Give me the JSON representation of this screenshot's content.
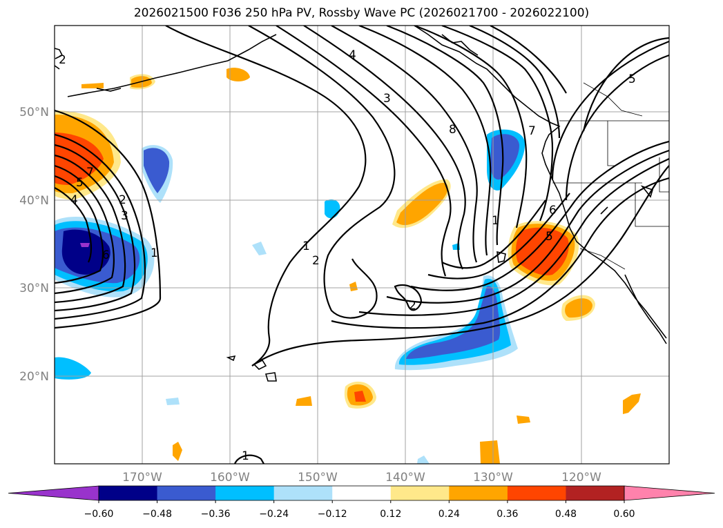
{
  "title": "2026021500 F036 250 hPa PV, Rossby Wave PC (2026021700 - 2026022100)",
  "lat_labels": [
    "50°N",
    "40°N",
    "30°N",
    "20°N"
  ],
  "lon_labels": [
    "170°W",
    "160°W",
    "150°W",
    "140°W",
    "130°W",
    "120°W"
  ],
  "pv_contour_labels": [
    "2",
    "4",
    "3",
    "8",
    "7",
    "5",
    "5",
    "7",
    "2",
    "3",
    "4",
    "6",
    "1",
    "1",
    "2",
    "1",
    "2",
    "6",
    "5",
    "1"
  ],
  "colorbar": {
    "ticks": [
      "−0.60",
      "−0.48",
      "−0.36",
      "−0.24",
      "−0.12",
      "0.12",
      "0.24",
      "0.36",
      "0.48",
      "0.60"
    ],
    "colors": [
      "#9933cc",
      "#000088",
      "#3a5bd0",
      "#00bfff",
      "#aee1fa",
      "#ffffff",
      "#ffe88a",
      "#ffa500",
      "#ff4500",
      "#b22222",
      "#ff82ac"
    ]
  },
  "shading_colors": {
    "neg_weak": "#aee1fa",
    "neg_mod": "#00bfff",
    "neg_strong": "#3a5bd0",
    "neg_vstrong": "#000088",
    "neg_ext": "#9933cc",
    "pos_weak": "#ffe88a",
    "pos_mod": "#ffa500",
    "pos_strong": "#ff4500"
  }
}
